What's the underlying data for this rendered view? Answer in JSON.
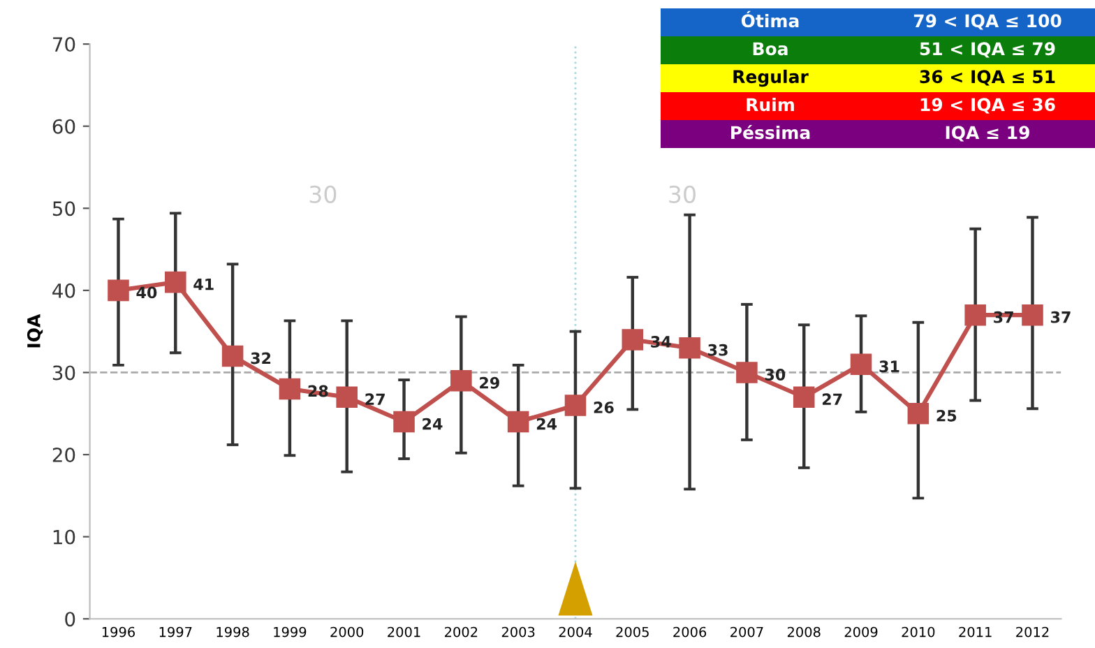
{
  "chart_data": {
    "type": "line",
    "ylabel": "IQA",
    "x": [
      1996,
      1997,
      1998,
      1999,
      2000,
      2001,
      2002,
      2003,
      2004,
      2005,
      2006,
      2007,
      2008,
      2009,
      2010,
      2011,
      2012
    ],
    "series": [
      {
        "color": "#c0504d",
        "values": [
          40,
          41,
          32,
          28,
          27,
          24,
          29,
          24,
          26,
          34,
          33,
          30,
          27,
          31,
          25,
          37,
          37
        ],
        "errors": [
          [
            30.9,
            48.7
          ],
          [
            32.4,
            49.4
          ],
          [
            21.2,
            43.2
          ],
          [
            19.9,
            36.3
          ],
          [
            17.9,
            36.3
          ],
          [
            19.5,
            29.1
          ],
          [
            20.2,
            36.8
          ],
          [
            16.2,
            30.9
          ],
          [
            15.9,
            35.0
          ],
          [
            25.5,
            41.6
          ],
          [
            15.8,
            49.2
          ],
          [
            21.8,
            38.3
          ],
          [
            18.4,
            35.8
          ],
          [
            25.2,
            36.9
          ],
          [
            14.7,
            36.1
          ],
          [
            26.6,
            47.5
          ],
          [
            25.6,
            48.9
          ]
        ]
      }
    ],
    "data_labels": true,
    "marker": "square",
    "line_style": "solid",
    "grid": false,
    "legend": false,
    "xlim": [
      1995.5,
      2012.5
    ],
    "xticks": [
      1996,
      1997,
      1998,
      1999,
      2000,
      2001,
      2002,
      2003,
      2004,
      2005,
      2006,
      2007,
      2008,
      2009,
      2010,
      2011,
      2012
    ],
    "ylim": [
      0,
      70
    ],
    "yticks": [
      0,
      10,
      20,
      30,
      40,
      50,
      60,
      70
    ],
    "ref_lines": [
      {
        "axis": "y",
        "value": 30,
        "label": null,
        "color": "#aaaaaa",
        "line_style": "dashed"
      },
      {
        "axis": "x",
        "value": 2004,
        "label": null,
        "color": "#a8d8e0",
        "line_style": "dotted"
      }
    ],
    "annotations": [
      "30",
      "30",
      "Ótima",
      "79 < IQA ≤ 100",
      "Boa",
      "51 < IQA ≤ 79",
      "Regular",
      "36 < IQA ≤ 51",
      "Ruim",
      "19 < IQA ≤ 36",
      "Péssima",
      "IQA ≤ 19"
    ]
  }
}
